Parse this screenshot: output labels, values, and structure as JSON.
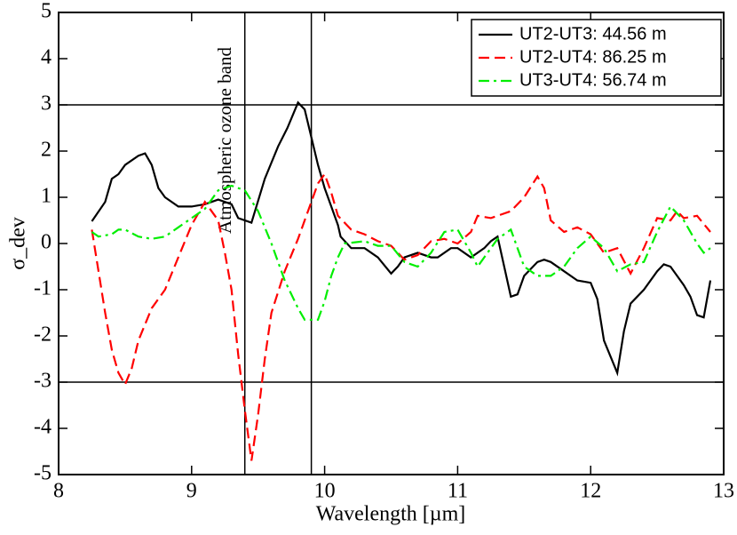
{
  "chart_data": {
    "type": "line",
    "xlabel": "Wavelength [µm]",
    "ylabel": "σ_dev",
    "annotation": "Atmospheric ozone band",
    "xlim": [
      8,
      13
    ],
    "xticks": [
      8,
      9,
      10,
      11,
      12,
      13
    ],
    "ylim": [
      -5,
      5
    ],
    "yticks": [
      -5,
      -4,
      -3,
      -2,
      -1,
      0,
      1,
      2,
      3,
      4,
      5
    ],
    "hlines": [
      3,
      -3
    ],
    "vlines": [
      9.4,
      9.9
    ],
    "legend": "upper right",
    "series": [
      {
        "name": "UT2-UT3: 44.56 m",
        "color": "#000000",
        "style": "solid",
        "x": [
          8.25,
          8.35,
          8.4,
          8.45,
          8.5,
          8.6,
          8.65,
          8.7,
          8.75,
          8.8,
          8.9,
          9.0,
          9.1,
          9.2,
          9.3,
          9.35,
          9.45,
          9.55,
          9.65,
          9.72,
          9.8,
          9.85,
          9.9,
          9.95,
          10.0,
          10.05,
          10.1,
          10.12,
          10.2,
          10.3,
          10.4,
          10.5,
          10.55,
          10.6,
          10.7,
          10.8,
          10.85,
          10.95,
          11.0,
          11.1,
          11.2,
          11.25,
          11.3,
          11.35,
          11.4,
          11.45,
          11.5,
          11.6,
          11.65,
          11.7,
          11.8,
          11.9,
          12.0,
          12.05,
          12.1,
          12.2,
          12.25,
          12.3,
          12.4,
          12.5,
          12.55,
          12.6,
          12.7,
          12.75,
          12.8,
          12.85,
          12.9
        ],
        "values": [
          0.48,
          0.9,
          1.4,
          1.5,
          1.7,
          1.9,
          1.95,
          1.7,
          1.2,
          1.0,
          0.8,
          0.8,
          0.85,
          0.95,
          0.85,
          0.55,
          0.45,
          1.4,
          2.1,
          2.5,
          3.05,
          2.9,
          2.3,
          1.7,
          1.2,
          0.8,
          0.4,
          0.15,
          -0.1,
          -0.1,
          -0.3,
          -0.65,
          -0.5,
          -0.3,
          -0.2,
          -0.3,
          -0.3,
          -0.1,
          -0.1,
          -0.3,
          -0.1,
          0.05,
          0.15,
          -0.5,
          -1.15,
          -1.1,
          -0.7,
          -0.4,
          -0.35,
          -0.4,
          -0.6,
          -0.8,
          -0.85,
          -1.2,
          -2.1,
          -2.8,
          -1.9,
          -1.3,
          -1.0,
          -0.6,
          -0.45,
          -0.5,
          -0.9,
          -1.15,
          -1.55,
          -1.6,
          -0.8
        ]
      },
      {
        "name": "UT2-UT4: 86.25 m",
        "color": "#ff0000",
        "style": "dashed",
        "x": [
          8.25,
          8.3,
          8.35,
          8.4,
          8.45,
          8.5,
          8.55,
          8.6,
          8.7,
          8.8,
          8.9,
          9.0,
          9.1,
          9.2,
          9.25,
          9.3,
          9.35,
          9.4,
          9.45,
          9.5,
          9.55,
          9.6,
          9.7,
          9.8,
          9.9,
          9.95,
          10.0,
          10.05,
          10.1,
          10.2,
          10.3,
          10.4,
          10.5,
          10.6,
          10.7,
          10.8,
          10.9,
          11.0,
          11.1,
          11.15,
          11.25,
          11.3,
          11.4,
          11.5,
          11.6,
          11.65,
          11.7,
          11.8,
          11.9,
          12.0,
          12.1,
          12.2,
          12.3,
          12.4,
          12.5,
          12.6,
          12.65,
          12.7,
          12.8,
          12.9
        ],
        "values": [
          0.3,
          -0.6,
          -1.5,
          -2.3,
          -2.8,
          -3.05,
          -2.7,
          -2.1,
          -1.4,
          -1.0,
          -0.3,
          0.4,
          0.9,
          0.5,
          -0.2,
          -1.0,
          -2.4,
          -3.6,
          -4.7,
          -3.7,
          -2.5,
          -1.5,
          -0.6,
          0.1,
          0.9,
          1.3,
          1.5,
          1.1,
          0.6,
          0.3,
          0.2,
          0.05,
          -0.05,
          -0.35,
          -0.25,
          0.05,
          0.1,
          0.0,
          0.25,
          0.6,
          0.55,
          0.6,
          0.7,
          1.0,
          1.45,
          1.2,
          0.5,
          0.25,
          0.35,
          0.2,
          -0.2,
          -0.1,
          -0.65,
          -0.1,
          0.55,
          0.5,
          0.7,
          0.55,
          0.6,
          0.25
        ]
      },
      {
        "name": "UT3-UT4: 56.74 m",
        "color": "#00ee00",
        "style": "dashdot",
        "x": [
          8.25,
          8.3,
          8.4,
          8.45,
          8.5,
          8.6,
          8.7,
          8.8,
          8.9,
          9.0,
          9.1,
          9.2,
          9.3,
          9.4,
          9.5,
          9.6,
          9.7,
          9.8,
          9.85,
          9.95,
          10.0,
          10.05,
          10.1,
          10.15,
          10.3,
          10.4,
          10.5,
          10.6,
          10.7,
          10.8,
          10.9,
          11.0,
          11.1,
          11.15,
          11.2,
          11.3,
          11.4,
          11.5,
          11.6,
          11.7,
          11.8,
          11.9,
          12.0,
          12.1,
          12.2,
          12.3,
          12.4,
          12.5,
          12.6,
          12.7,
          12.8,
          12.85,
          12.9
        ],
        "values": [
          0.25,
          0.15,
          0.2,
          0.3,
          0.3,
          0.15,
          0.1,
          0.15,
          0.35,
          0.55,
          0.75,
          1.15,
          1.25,
          1.15,
          0.7,
          0.0,
          -0.8,
          -1.4,
          -1.65,
          -1.65,
          -1.25,
          -0.7,
          -0.3,
          0.0,
          0.05,
          -0.05,
          -0.05,
          -0.4,
          -0.5,
          -0.2,
          0.25,
          0.3,
          -0.2,
          -0.5,
          -0.3,
          0.1,
          0.3,
          -0.5,
          -0.7,
          -0.7,
          -0.5,
          -0.1,
          0.15,
          -0.1,
          -0.6,
          -0.45,
          -0.4,
          0.25,
          0.8,
          0.5,
          0.0,
          -0.2,
          -0.1
        ]
      }
    ]
  }
}
